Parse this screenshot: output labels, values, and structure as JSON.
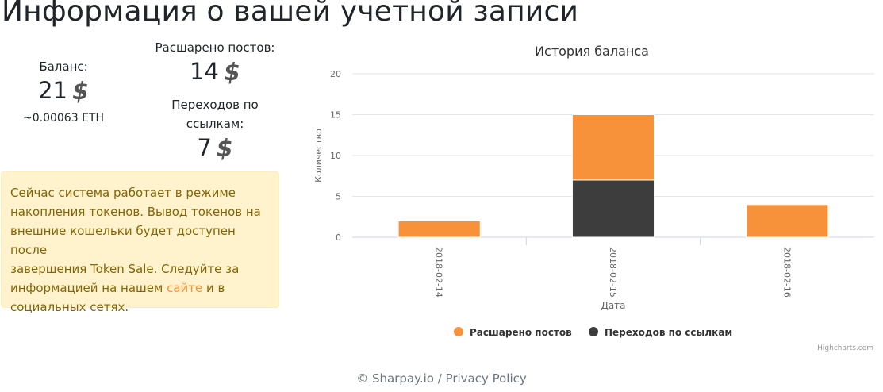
{
  "page": {
    "title": "Информация о вашей учетной записи"
  },
  "stats": {
    "balance": {
      "label": "Баланс:",
      "value": "21",
      "sub": "~0.00063 ETH"
    },
    "shared": {
      "label": "Расшарено постов:",
      "value": "14"
    },
    "clicks": {
      "label_line1": "Переходов по",
      "label_line2": "ссылкам:",
      "value": "7"
    }
  },
  "icons": {
    "dollar": "dollar-icon"
  },
  "alert": {
    "line1": "Сейчас система работает в режиме",
    "line2": "накопления токенов. Вывод токенов на",
    "line3": "внешние кошельки будет доступен после",
    "line4": "завершения Token Sale. Следуйте за",
    "line5_before": "информацией на нашем ",
    "link": "сайте",
    "line5_after": " и в",
    "line6": "социальных сетях."
  },
  "chart_data": {
    "type": "bar",
    "stacked": true,
    "title": "История баланса",
    "xlabel": "Дата",
    "ylabel": "Количество",
    "categories": [
      "2018-02-14",
      "2018-02-15",
      "2018-02-16"
    ],
    "series": [
      {
        "name": "Расшарено постов",
        "color": "#f7923a",
        "values": [
          2,
          8,
          4
        ]
      },
      {
        "name": "Переходов по ссылкам",
        "color": "#3d3d3d",
        "values": [
          0,
          7,
          0
        ]
      }
    ],
    "ylim": [
      0,
      20
    ],
    "yticks": [
      0,
      5,
      10,
      15,
      20
    ],
    "grid": true,
    "legend": "bottom-center",
    "credits": "Highcharts.com"
  },
  "footer": {
    "copyright": "© Sharpay.io",
    "separator": " / ",
    "privacy": "Privacy Policy"
  }
}
